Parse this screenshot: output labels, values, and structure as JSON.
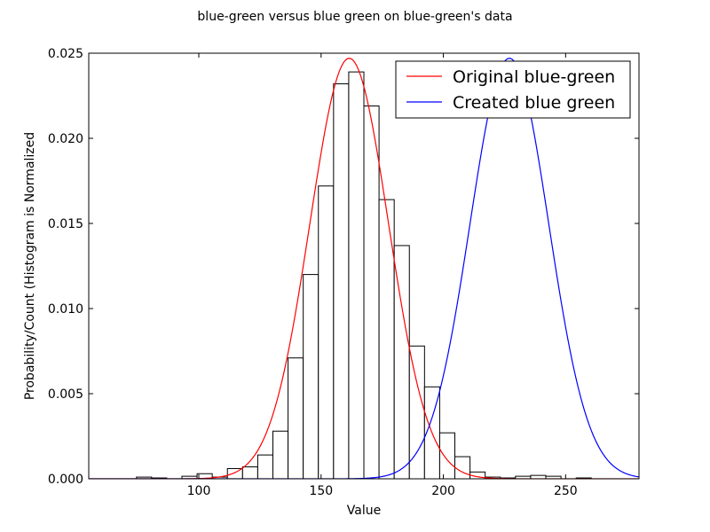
{
  "chart_data": {
    "type": "bar",
    "title": "blue-green versus blue green on blue-green's data",
    "xlabel": "Value",
    "ylabel": "Probability/Count (Histogram is Normalized",
    "xlim": [
      55,
      280
    ],
    "ylim": [
      0,
      0.025
    ],
    "xticks": [
      100,
      150,
      200,
      250
    ],
    "yticks": [
      0.0,
      0.005,
      0.01,
      0.015,
      0.02,
      0.025
    ],
    "xtick_labels": [
      "100",
      "150",
      "200",
      "250"
    ],
    "ytick_labels": [
      "0.000",
      "0.005",
      "0.010",
      "0.015",
      "0.020",
      "0.025"
    ],
    "grid": false,
    "legend_position": "top-right",
    "histogram": {
      "bin_edges": [
        74.5,
        80.7,
        86.9,
        93.1,
        99.3,
        105.5,
        111.7,
        117.9,
        124.1,
        130.3,
        136.5,
        142.7,
        148.9,
        155.1,
        161.3,
        167.5,
        173.7,
        179.9,
        186.1,
        192.3,
        198.5,
        204.7,
        210.9,
        217.1,
        223.3,
        229.5,
        235.7,
        241.9,
        248.1,
        254.3,
        260.5
      ],
      "values": [
        0.0001,
        5e-05,
        0.0,
        0.00015,
        0.0003,
        0.0001,
        0.0006,
        0.0007,
        0.0014,
        0.0028,
        0.0071,
        0.012,
        0.0172,
        0.0232,
        0.0239,
        0.0219,
        0.0164,
        0.0137,
        0.0078,
        0.0054,
        0.0027,
        0.0013,
        0.0004,
        0.0001,
        5e-05,
        0.00015,
        0.0002,
        0.00015,
        0.0,
        5e-05
      ],
      "color": "#ffffff",
      "edge_color": "#000000"
    },
    "series": [
      {
        "name": "Original blue-green",
        "type": "line",
        "color": "#ff0000",
        "mean": 161.5,
        "std": 16.1,
        "peak": 0.0247
      },
      {
        "name": "Created blue green",
        "type": "line",
        "color": "#0000ff",
        "mean": 227,
        "std": 16.1,
        "peak": 0.0247
      }
    ]
  }
}
